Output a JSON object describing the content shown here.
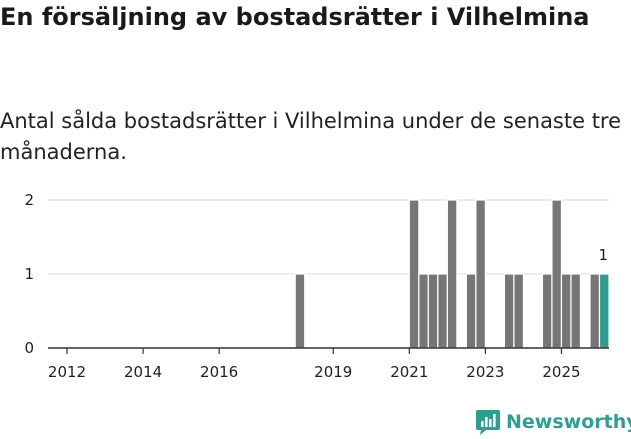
{
  "title": "En försäljning av bostadsrätter i Vilhelmina",
  "subtitle": "Antal sålda bostadsrätter i Vilhelmina under de senaste tre månaderna.",
  "brand": {
    "name": "Newsworthy",
    "icon": "newsworthy-logo-icon",
    "color": "#2f9e8f"
  },
  "chart_data": {
    "type": "bar",
    "grid": true,
    "ylim": [
      0,
      2
    ],
    "yticks": [
      0,
      1,
      2
    ],
    "xlim": [
      2011.5,
      2026.25
    ],
    "xticks": [
      2012,
      2014,
      2016,
      2019,
      2021,
      2023,
      2025
    ],
    "bar_width_years": 0.25,
    "colors": {
      "bar": "#767676",
      "highlight": "#2f9e8f"
    },
    "series": [
      {
        "values": [
          {
            "x": 2018.125,
            "y": 1
          },
          {
            "x": 2021.125,
            "y": 2
          },
          {
            "x": 2021.375,
            "y": 1
          },
          {
            "x": 2021.625,
            "y": 1
          },
          {
            "x": 2021.875,
            "y": 1
          },
          {
            "x": 2022.125,
            "y": 2
          },
          {
            "x": 2022.625,
            "y": 1
          },
          {
            "x": 2022.875,
            "y": 2
          },
          {
            "x": 2023.625,
            "y": 1
          },
          {
            "x": 2023.875,
            "y": 1
          },
          {
            "x": 2024.625,
            "y": 1
          },
          {
            "x": 2024.875,
            "y": 2
          },
          {
            "x": 2025.125,
            "y": 1
          },
          {
            "x": 2025.375,
            "y": 1
          },
          {
            "x": 2025.875,
            "y": 1
          }
        ]
      }
    ],
    "highlight": {
      "x": 2026.125,
      "y": 1,
      "label": "1"
    }
  }
}
